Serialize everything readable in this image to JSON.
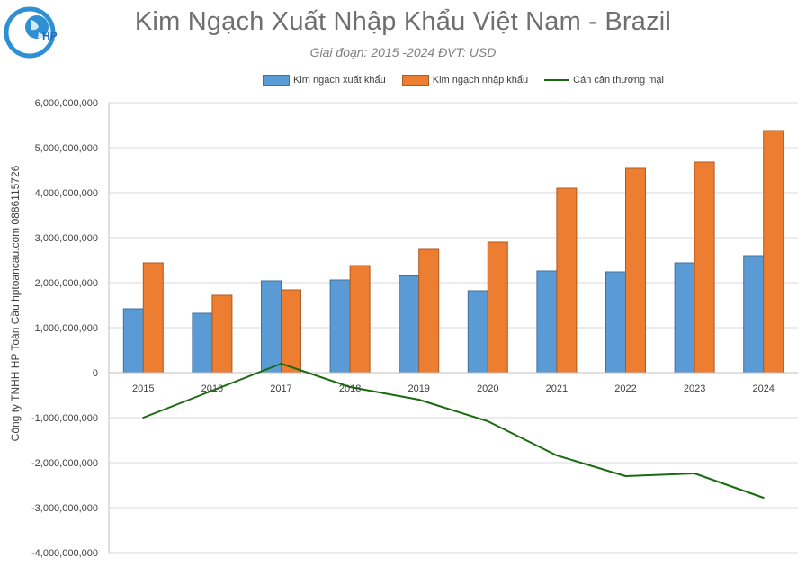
{
  "logo_text": "HP",
  "chart_data": {
    "type": "bar",
    "title": "Kim Ngạch Xuất Nhập Khẩu Việt Nam - Brazil",
    "subtitle": "Giai đoạn: 2015 -2024  ĐVT: USD",
    "ylabel": "Công ty TNHH HP Toàn Cầu hptoancau.com 0886115726",
    "xlabel": "",
    "ylim": [
      -4000000000,
      6000000000
    ],
    "yticks": [
      6000000000,
      5000000000,
      4000000000,
      3000000000,
      2000000000,
      1000000000,
      0,
      -1000000000,
      -2000000000,
      -3000000000,
      -4000000000
    ],
    "ytick_labels": [
      "6,000,000,000",
      "5,000,000,000",
      "4,000,000,000",
      "3,000,000,000",
      "2,000,000,000",
      "1,000,000,000",
      "0",
      "-1,000,000,000",
      "-2,000,000,000",
      "-3,000,000,000",
      "-4,000,000,000"
    ],
    "categories": [
      "2015",
      "2016",
      "2017",
      "2018",
      "2019",
      "2020",
      "2021",
      "2022",
      "2023",
      "2024"
    ],
    "series": [
      {
        "name": "Kim ngạch xuất khẩu",
        "kind": "bar",
        "color": "#5b9bd5",
        "values": [
          1420000000,
          1320000000,
          2040000000,
          2060000000,
          2150000000,
          1820000000,
          2260000000,
          2240000000,
          2440000000,
          2600000000
        ]
      },
      {
        "name": "Kim ngạch nhập khẩu",
        "kind": "bar",
        "color": "#ed7d31",
        "values": [
          2440000000,
          1720000000,
          1840000000,
          2380000000,
          2740000000,
          2900000000,
          4100000000,
          4540000000,
          4680000000,
          5380000000
        ]
      },
      {
        "name": "Cán cân thương mại",
        "kind": "line",
        "color": "#1a6a10",
        "values": [
          -1000000000,
          -400000000,
          200000000,
          -320000000,
          -600000000,
          -1080000000,
          -1840000000,
          -2300000000,
          -2240000000,
          -2780000000
        ]
      }
    ],
    "grid": true,
    "legend_position": "top"
  }
}
